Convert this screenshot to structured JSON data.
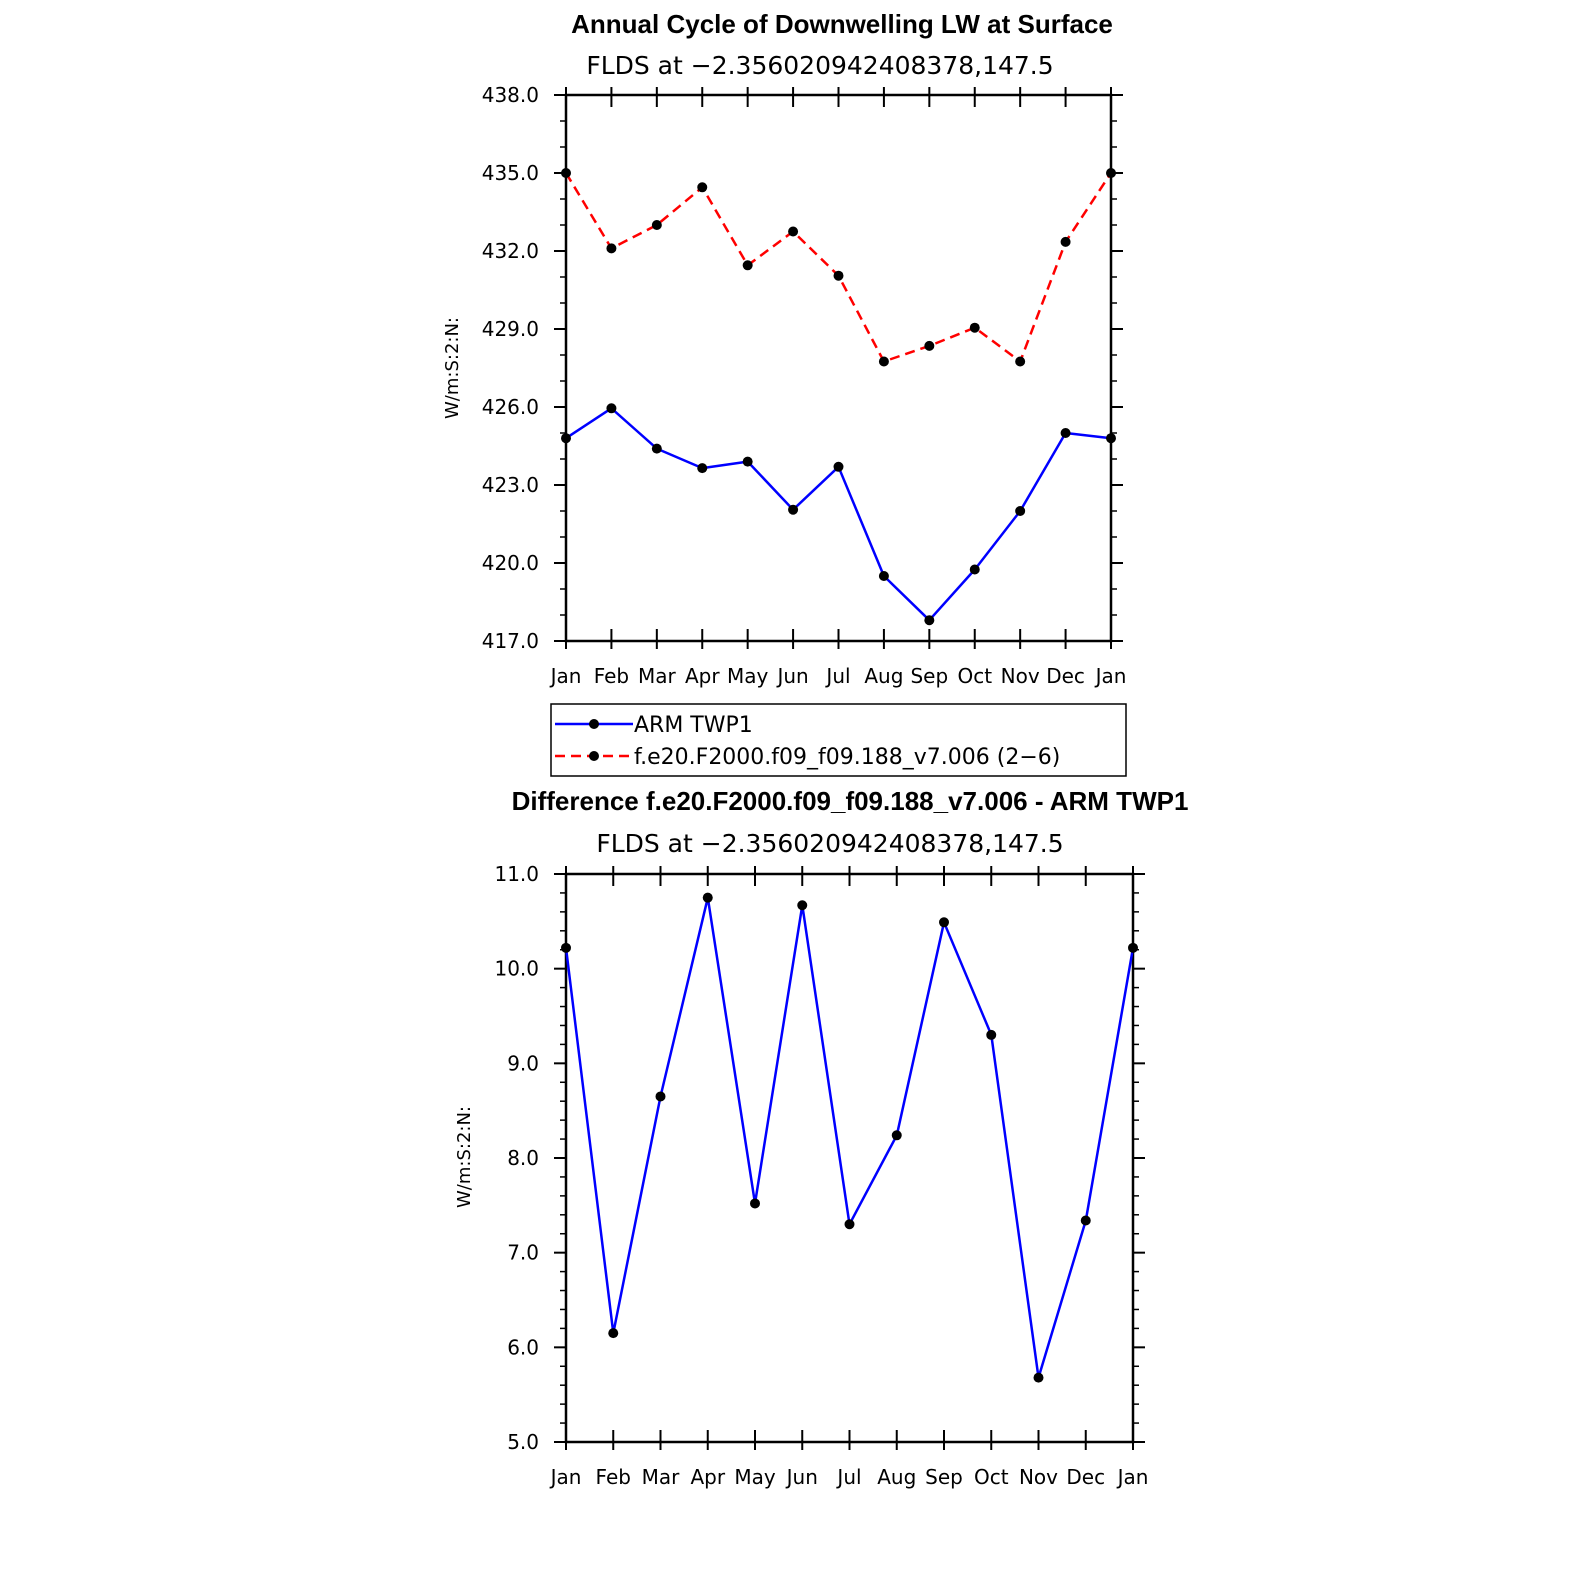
{
  "chart_data": [
    {
      "type": "line",
      "title": "Annual Cycle of Downwelling LW at Surface",
      "subtitle": "FLDS at −2.356020942408378,147.5",
      "ylabel": "W/m:S:2:N:",
      "ylim": [
        417.0,
        438.0
      ],
      "yticks": [
        "417.0",
        "420.0",
        "423.0",
        "426.0",
        "429.0",
        "432.0",
        "435.0",
        "438.0"
      ],
      "categories": [
        "Jan",
        "Feb",
        "Mar",
        "Apr",
        "May",
        "Jun",
        "Jul",
        "Aug",
        "Sep",
        "Oct",
        "Nov",
        "Dec",
        "Jan"
      ],
      "series": [
        {
          "name": "ARM  TWP1",
          "color": "#0000ff",
          "dash": "solid",
          "values": [
            424.8,
            425.95,
            424.4,
            423.65,
            423.9,
            422.05,
            423.7,
            419.5,
            417.8,
            419.75,
            422.0,
            425.0,
            424.8
          ]
        },
        {
          "name": "f.e20.F2000.f09_f09.188_v7.006 (2−6)",
          "color": "#ff0000",
          "dash": "dashed",
          "values": [
            435.0,
            432.1,
            433.0,
            434.45,
            431.45,
            432.75,
            431.05,
            427.75,
            428.35,
            429.05,
            427.75,
            432.35,
            435.0
          ]
        }
      ],
      "legend": "bottom"
    },
    {
      "type": "line",
      "title": "Difference f.e20.F2000.f09_f09.188_v7.006 - ARM TWP1",
      "subtitle": "FLDS at −2.356020942408378,147.5",
      "ylabel": "W/m:S:2:N:",
      "ylim": [
        5.0,
        11.0
      ],
      "yticks": [
        "5.0",
        "6.0",
        "7.0",
        "8.0",
        "9.0",
        "10.0",
        "11.0"
      ],
      "categories": [
        "Jan",
        "Feb",
        "Mar",
        "Apr",
        "May",
        "Jun",
        "Jul",
        "Aug",
        "Sep",
        "Oct",
        "Nov",
        "Dec",
        "Jan"
      ],
      "series": [
        {
          "color": "#0000ff",
          "values": [
            10.22,
            6.15,
            8.65,
            10.75,
            7.52,
            10.67,
            7.3,
            8.24,
            10.49,
            9.3,
            5.68,
            7.34,
            10.22
          ]
        }
      ]
    }
  ]
}
